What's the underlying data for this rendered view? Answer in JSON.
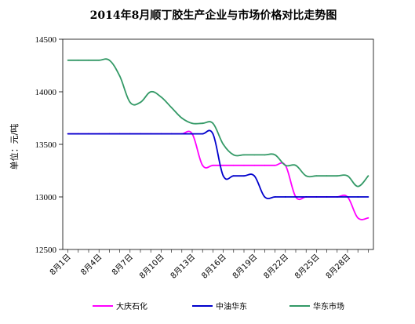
{
  "chart_data": {
    "type": "line",
    "title": "2014年8月顺丁胶生产企业与市场价格对比走势图",
    "ylabel": "单位：元/吨",
    "xlabel": "",
    "ylim": [
      12500,
      14500
    ],
    "yticks": [
      12500,
      13000,
      13500,
      14000,
      14500
    ],
    "x": [
      "8月1日",
      "8月2日",
      "8月3日",
      "8月4日",
      "8月5日",
      "8月6日",
      "8月7日",
      "8月8日",
      "8月9日",
      "8月10日",
      "8月11日",
      "8月12日",
      "8月13日",
      "8月14日",
      "8月15日",
      "8月16日",
      "8月17日",
      "8月18日",
      "8月19日",
      "8月20日",
      "8月21日",
      "8月22日",
      "8月23日",
      "8月24日",
      "8月25日",
      "8月26日",
      "8月27日",
      "8月28日",
      "8月29日",
      "8月30日"
    ],
    "xtick_labels": [
      "8月1日",
      "8月4日",
      "8月7日",
      "8月10日",
      "8月13日",
      "8月16日",
      "8月19日",
      "8月22日",
      "8月25日",
      "8月28日"
    ],
    "series": [
      {
        "name": "大庆石化",
        "color": "#ff00ff",
        "values": [
          13600,
          13600,
          13600,
          13600,
          13600,
          13600,
          13600,
          13600,
          13600,
          13600,
          13600,
          13600,
          13600,
          13300,
          13300,
          13300,
          13300,
          13300,
          13300,
          13300,
          13300,
          13300,
          13000,
          13000,
          13000,
          13000,
          13000,
          13000,
          12800,
          12800
        ]
      },
      {
        "name": "中油华东",
        "color": "#0000cc",
        "values": [
          13600,
          13600,
          13600,
          13600,
          13600,
          13600,
          13600,
          13600,
          13600,
          13600,
          13600,
          13600,
          13600,
          13600,
          13600,
          13200,
          13200,
          13200,
          13200,
          13000,
          13000,
          13000,
          13000,
          13000,
          13000,
          13000,
          13000,
          13000,
          13000,
          13000
        ]
      },
      {
        "name": "华东市场",
        "color": "#339966",
        "values": [
          14300,
          14300,
          14300,
          14300,
          14300,
          14150,
          13900,
          13900,
          14000,
          13950,
          13850,
          13750,
          13700,
          13700,
          13700,
          13500,
          13400,
          13400,
          13400,
          13400,
          13400,
          13300,
          13300,
          13200,
          13200,
          13200,
          13200,
          13200,
          13100,
          13200
        ]
      }
    ],
    "legend_position": "bottom",
    "grid": false
  }
}
